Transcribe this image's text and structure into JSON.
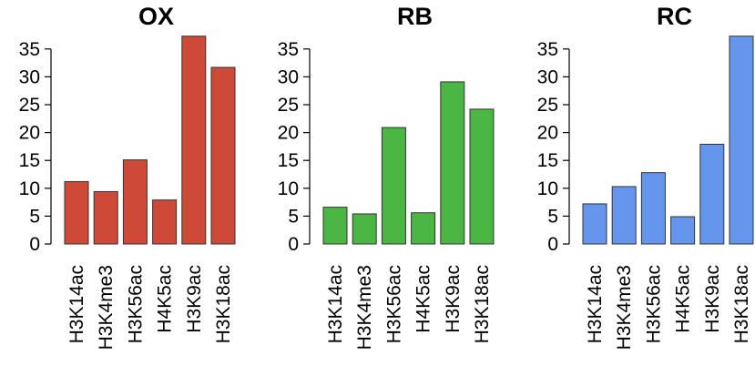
{
  "chart_data": [
    {
      "type": "bar",
      "title": "OX",
      "categories": [
        "H3K14ac",
        "H3K4me3",
        "H3K56ac",
        "H4K5ac",
        "H3K9ac",
        "H3K18ac"
      ],
      "values": [
        11.2,
        9.4,
        15.1,
        7.9,
        37.3,
        31.7
      ],
      "yticks": [
        0,
        5,
        10,
        15,
        20,
        25,
        30,
        35
      ],
      "ylim": [
        0,
        37.5
      ],
      "color": "#cd4a38",
      "xlabel": "",
      "ylabel": "",
      "grid": false
    },
    {
      "type": "bar",
      "title": "RB",
      "categories": [
        "H3K14ac",
        "H3K4me3",
        "H3K56ac",
        "H4K5ac",
        "H3K9ac",
        "H3K18ac"
      ],
      "values": [
        6.6,
        5.4,
        20.9,
        5.6,
        29.1,
        24.2
      ],
      "yticks": [
        0,
        5,
        10,
        15,
        20,
        25,
        30,
        35
      ],
      "ylim": [
        0,
        37.5
      ],
      "color": "#4bb644",
      "xlabel": "",
      "ylabel": "",
      "grid": false
    },
    {
      "type": "bar",
      "title": "RC",
      "categories": [
        "H3K14ac",
        "H3K4me3",
        "H3K56ac",
        "H4K5ac",
        "H3K9ac",
        "H3K18ac"
      ],
      "values": [
        7.2,
        10.3,
        12.8,
        4.9,
        17.9,
        37.3
      ],
      "yticks": [
        0,
        5,
        10,
        15,
        20,
        25,
        30,
        35
      ],
      "ylim": [
        0,
        37.5
      ],
      "color": "#6496ee",
      "xlabel": "",
      "ylabel": "",
      "grid": false
    }
  ]
}
